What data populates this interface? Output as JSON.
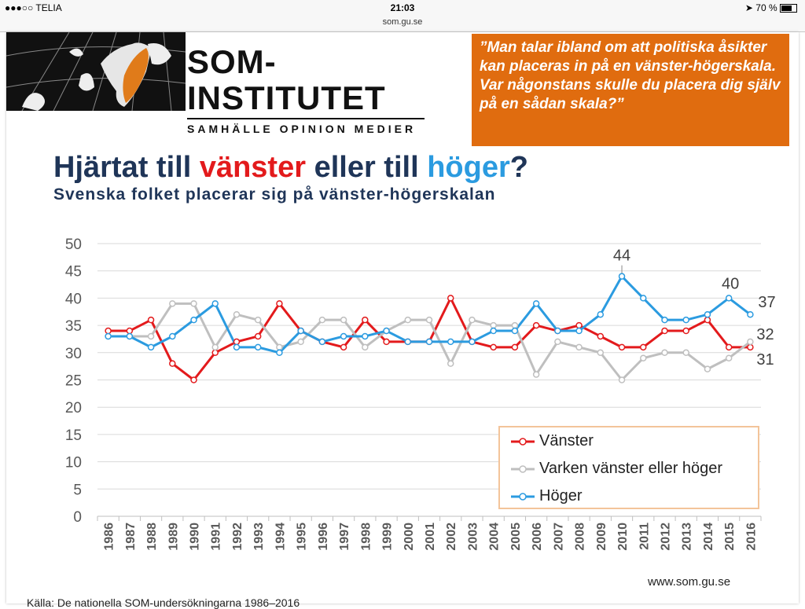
{
  "statusbar": {
    "carrier": "●●●○○ TELIA",
    "time": "21:03",
    "battery": "70 %"
  },
  "browser": {
    "url": "som.gu.se"
  },
  "logo": {
    "name": "SOM-INSTITUTET",
    "tagline": "SAMHÄLLE OPINION MEDIER"
  },
  "quote": "”Man talar ibland om att politiska åsikter kan placeras in på en vänster-högerskala. Var någonstans skulle du placera dig själv på en sådan skala?”",
  "title": {
    "part1": "Hjärtat till ",
    "part2": "vänster",
    "part3": " eller till ",
    "part4": "höger",
    "part5": "?"
  },
  "subtitle": "Svenska folket placerar sig på vänster-högerskalan",
  "footer": {
    "site": "www.som.gu.se",
    "source": "Källa: De nationella SOM-undersökningarna 1986–2016"
  },
  "colors": {
    "left": "#e31a1c",
    "neither": "#bfbfbf",
    "right": "#2b9be0",
    "title": "#1f3558",
    "quote_bg": "#e06c0f"
  },
  "chart_data": {
    "type": "line",
    "x": [
      "1986",
      "1987",
      "1988",
      "1989",
      "1990",
      "1991",
      "1992",
      "1993",
      "1994",
      "1995",
      "1996",
      "1997",
      "1998",
      "1999",
      "2000",
      "2001",
      "2002",
      "2003",
      "2004",
      "2005",
      "2006",
      "2007",
      "2008",
      "2009",
      "2010",
      "2011",
      "2012",
      "2013",
      "2014",
      "2015",
      "2016"
    ],
    "ylim": [
      0,
      50
    ],
    "yticks": [
      0,
      5,
      10,
      15,
      20,
      25,
      30,
      35,
      40,
      45,
      50
    ],
    "grid": true,
    "legend_position": "bottom-right",
    "series": [
      {
        "name": "Vänster",
        "color": "#e31a1c",
        "values": [
          34,
          34,
          36,
          28,
          25,
          30,
          32,
          33,
          39,
          34,
          32,
          31,
          36,
          32,
          32,
          32,
          40,
          32,
          31,
          31,
          35,
          34,
          35,
          33,
          31,
          31,
          34,
          34,
          36,
          31,
          31
        ]
      },
      {
        "name": "Varken vänster eller höger",
        "color": "#bfbfbf",
        "values": [
          33,
          33,
          33,
          39,
          39,
          31,
          37,
          36,
          31,
          32,
          36,
          36,
          31,
          34,
          36,
          36,
          28,
          36,
          35,
          35,
          26,
          32,
          31,
          30,
          25,
          29,
          30,
          30,
          27,
          29,
          32
        ]
      },
      {
        "name": "Höger",
        "color": "#2b9be0",
        "values": [
          33,
          33,
          31,
          33,
          36,
          39,
          31,
          31,
          30,
          34,
          32,
          33,
          33,
          34,
          32,
          32,
          32,
          32,
          34,
          34,
          39,
          34,
          34,
          37,
          44,
          40,
          36,
          36,
          37,
          40,
          37
        ]
      }
    ],
    "annotations": [
      {
        "label": "44",
        "series": "Höger",
        "x": "2010"
      },
      {
        "label": "40",
        "series": "Höger",
        "x": "2015"
      },
      {
        "label": "37",
        "series": "Höger",
        "x": "2016"
      },
      {
        "label": "32",
        "series": "Varken vänster eller höger",
        "x": "2016"
      },
      {
        "label": "31",
        "series": "Vänster",
        "x": "2016"
      }
    ]
  }
}
